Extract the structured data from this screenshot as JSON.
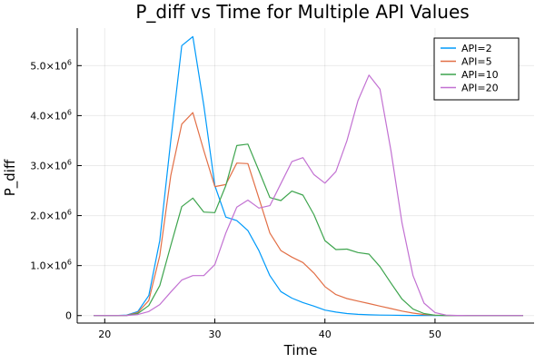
{
  "chart_data": {
    "type": "line",
    "title": "P_diff vs Time for Multiple API Values",
    "xlabel": "Time",
    "ylabel": "P_diff",
    "xlim": [
      17.5,
      59
    ],
    "ylim": [
      -150000,
      5750000
    ],
    "xticks": [
      20,
      30,
      40,
      50
    ],
    "yticks": [
      {
        "value": 0,
        "mantissa": "0",
        "exp": ""
      },
      {
        "value": 1000000,
        "mantissa": "1.0×10",
        "exp": "6"
      },
      {
        "value": 2000000,
        "mantissa": "2.0×10",
        "exp": "6"
      },
      {
        "value": 3000000,
        "mantissa": "3.0×10",
        "exp": "6"
      },
      {
        "value": 4000000,
        "mantissa": "4.0×10",
        "exp": "6"
      },
      {
        "value": 5000000,
        "mantissa": "5.0×10",
        "exp": "6"
      }
    ],
    "grid": true,
    "legend_position": "top-right",
    "x": [
      19,
      20,
      21,
      22,
      23,
      24,
      25,
      26,
      27,
      28,
      29,
      30,
      31,
      32,
      33,
      34,
      35,
      36,
      37,
      38,
      39,
      40,
      41,
      42,
      43,
      44,
      45,
      46,
      47,
      48,
      49,
      50,
      51,
      52,
      53,
      54,
      55,
      56,
      57,
      58
    ],
    "series": [
      {
        "name": "API=2",
        "color": "#009AFA",
        "values": [
          0,
          0,
          0,
          10000,
          80000,
          400000,
          1500000,
          3500000,
          5400000,
          5580000,
          4200000,
          2600000,
          1970000,
          1900000,
          1700000,
          1300000,
          800000,
          480000,
          350000,
          260000,
          190000,
          110000,
          70000,
          40000,
          25000,
          15000,
          10000,
          8000,
          5000,
          3000,
          2000,
          1000,
          0,
          0,
          0,
          0,
          0,
          0,
          0,
          0
        ]
      },
      {
        "name": "API=5",
        "color": "#E26F46",
        "values": [
          0,
          0,
          0,
          5000,
          60000,
          300000,
          1200000,
          2800000,
          3830000,
          4060000,
          3300000,
          2580000,
          2620000,
          3050000,
          3040000,
          2350000,
          1650000,
          1300000,
          1170000,
          1060000,
          850000,
          580000,
          420000,
          340000,
          290000,
          240000,
          190000,
          140000,
          90000,
          50000,
          20000,
          8000,
          2000,
          0,
          0,
          0,
          0,
          0,
          0,
          0
        ]
      },
      {
        "name": "API=10",
        "color": "#3DA44D",
        "values": [
          0,
          0,
          0,
          3000,
          40000,
          200000,
          600000,
          1400000,
          2180000,
          2350000,
          2070000,
          2060000,
          2600000,
          3400000,
          3430000,
          2900000,
          2360000,
          2300000,
          2490000,
          2410000,
          2020000,
          1500000,
          1320000,
          1330000,
          1260000,
          1230000,
          980000,
          650000,
          330000,
          130000,
          40000,
          8000,
          2000,
          0,
          0,
          0,
          0,
          0,
          0,
          0
        ]
      },
      {
        "name": "API=20",
        "color": "#C271D2",
        "values": [
          0,
          0,
          0,
          2000,
          20000,
          80000,
          220000,
          470000,
          710000,
          800000,
          800000,
          1020000,
          1650000,
          2170000,
          2310000,
          2150000,
          2200000,
          2640000,
          3080000,
          3160000,
          2820000,
          2650000,
          2880000,
          3500000,
          4300000,
          4810000,
          4530000,
          3300000,
          1850000,
          800000,
          250000,
          60000,
          10000,
          2000,
          0,
          0,
          0,
          0,
          0,
          0
        ]
      }
    ]
  }
}
